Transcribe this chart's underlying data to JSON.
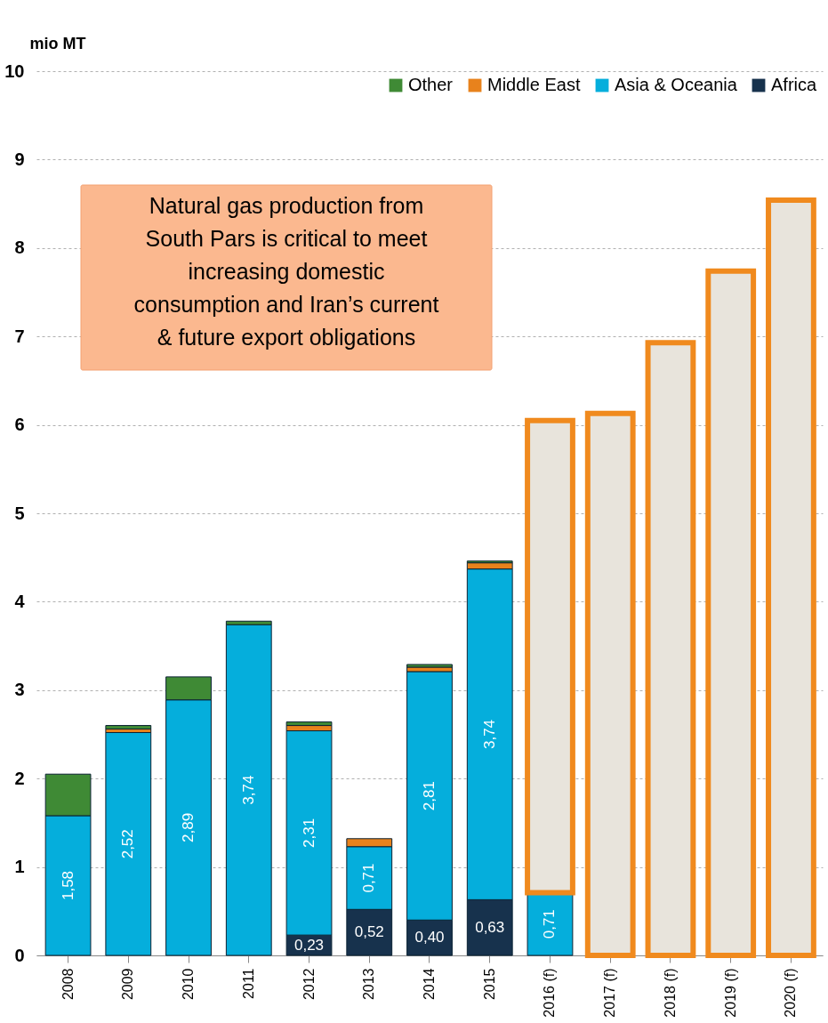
{
  "chart_data": {
    "type": "bar",
    "stacked": true,
    "ylabel": "mio MT",
    "categories": [
      "2008",
      "2009",
      "2010",
      "2011",
      "2012",
      "2013",
      "2014",
      "2015",
      "2016 (f)",
      "2017 (f)",
      "2018 (f)",
      "2019 (f)",
      "2020 (f)"
    ],
    "series": [
      {
        "name": "Africa",
        "color": "#17324d",
        "values": [
          null,
          null,
          null,
          null,
          0.23,
          0.52,
          0.4,
          0.63,
          null,
          null,
          null,
          null,
          null
        ],
        "value_labels": [
          null,
          null,
          null,
          null,
          "0,23",
          "0,52",
          "0,40",
          "0,63",
          null,
          null,
          null,
          null,
          null
        ]
      },
      {
        "name": "Asia & Oceania",
        "color": "#05aedc",
        "values": [
          1.58,
          2.52,
          2.89,
          3.74,
          2.31,
          0.71,
          2.81,
          3.74,
          0.71,
          null,
          null,
          null,
          null
        ],
        "value_labels": [
          "1,58",
          "2,52",
          "2,89",
          "3,74",
          "2,31",
          "0,71",
          "2,81",
          "3,74",
          "0,71",
          null,
          null,
          null,
          null
        ]
      },
      {
        "name": "Middle East",
        "color": "#e8821c",
        "values": [
          null,
          0.04,
          null,
          null,
          0.06,
          0.09,
          0.05,
          0.07,
          null,
          null,
          null,
          null,
          null
        ]
      },
      {
        "name": "Other",
        "color": "#3f8a35",
        "values": [
          0.47,
          0.04,
          0.26,
          0.04,
          0.04,
          null,
          0.03,
          0.02,
          null,
          null,
          null,
          null,
          null
        ]
      },
      {
        "color": "#e8e4dc",
        "values": [
          null,
          null,
          null,
          null,
          null,
          null,
          null,
          null,
          5.34,
          6.13,
          6.93,
          7.74,
          8.54
        ]
      }
    ],
    "ylim": [
      0,
      10
    ],
    "yticks": [
      0,
      1,
      2,
      3,
      4,
      5,
      6,
      7,
      8,
      9,
      10
    ],
    "grid": "y",
    "legend": "top right",
    "annotations": [
      "Natural gas production from South Pars is critical to meet increasing domestic consumption and Iran’s current & future export obligations"
    ]
  }
}
